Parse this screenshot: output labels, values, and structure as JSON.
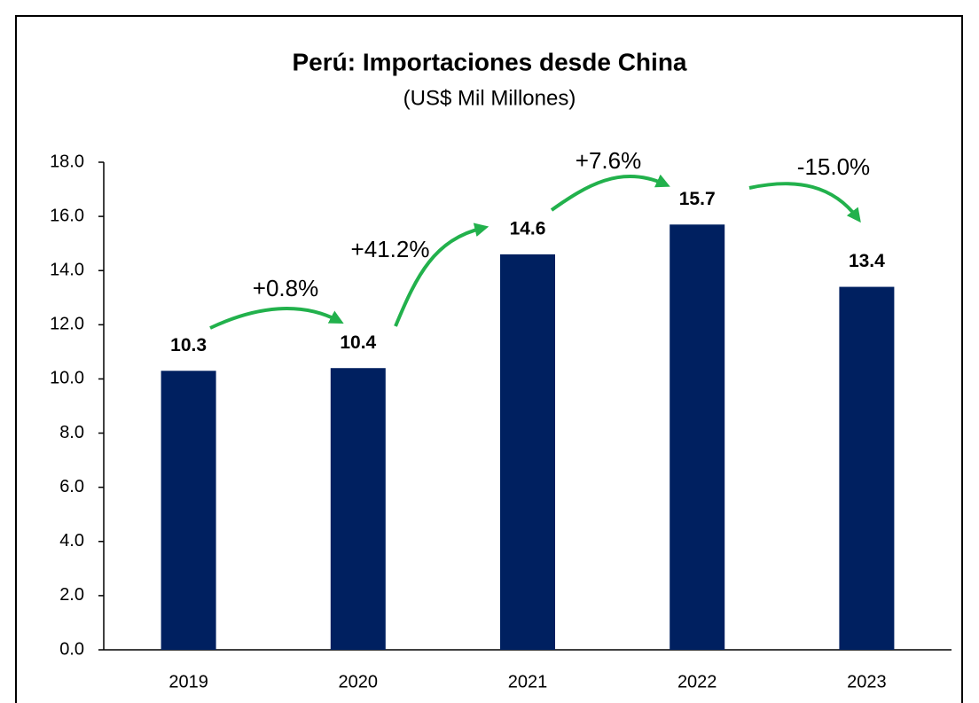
{
  "chart_data": {
    "type": "bar",
    "title": "Perú: Importaciones desde China",
    "subtitle": "(US$ Mil Millones)",
    "categories": [
      "2019",
      "2020",
      "2021",
      "2022",
      "2023"
    ],
    "values": [
      10.3,
      10.4,
      14.6,
      15.7,
      13.4
    ],
    "color": "#002060",
    "ylim": [
      0,
      18
    ],
    "yticks": [
      {
        "value": 0,
        "label": "0.0"
      },
      {
        "value": 2,
        "label": "2.0"
      },
      {
        "value": 4,
        "label": "4.0"
      },
      {
        "value": 6,
        "label": "6.0"
      },
      {
        "value": 8,
        "label": "8.0"
      },
      {
        "value": 10,
        "label": "10.0"
      },
      {
        "value": 12,
        "label": "12.0"
      },
      {
        "value": 14,
        "label": "14.0"
      },
      {
        "value": 16,
        "label": "16.0"
      },
      {
        "value": 18,
        "label": "18.0"
      }
    ],
    "annotations": [
      "+0.8%",
      "+41.2%",
      "+7.6%",
      "-15.0%"
    ]
  }
}
